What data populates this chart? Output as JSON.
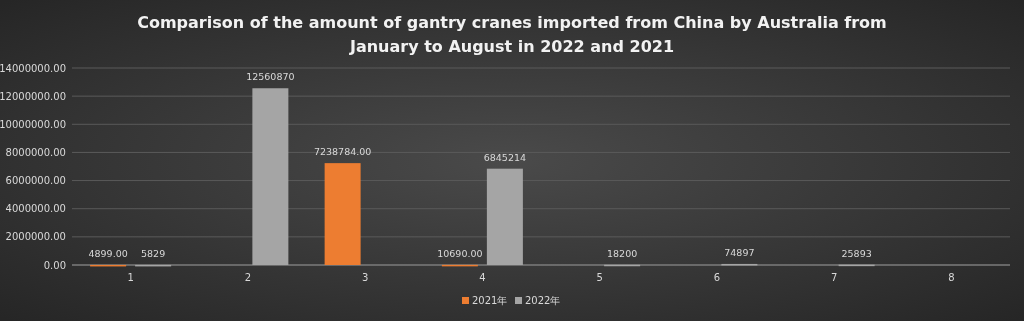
{
  "chart_data": {
    "type": "bar",
    "title": "Comparison of the amount of gantry cranes imported from China by Australia from January to August in 2022 and 2021",
    "categories": [
      "1",
      "2",
      "3",
      "4",
      "5",
      "6",
      "7",
      "8"
    ],
    "series": [
      {
        "name": "2021年",
        "color": "#ed7d31",
        "values": [
          4899,
          null,
          7238784,
          10690,
          null,
          null,
          null,
          null
        ],
        "value_labels": [
          "4899.00",
          null,
          "7238784.00",
          "10690.00",
          null,
          null,
          null,
          null
        ]
      },
      {
        "name": "2022年",
        "color": "#a5a5a5",
        "values": [
          5829,
          12560870,
          null,
          6845214,
          18200,
          74897,
          25893,
          null
        ],
        "value_labels": [
          "5829",
          "12560870",
          null,
          "6845214",
          "18200",
          "74897",
          "25893",
          null
        ]
      }
    ],
    "ylim": [
      0,
      14000000
    ],
    "yticks": [
      {
        "value": 0,
        "label": "0.00"
      },
      {
        "value": 2000000,
        "label": "2000000.00"
      },
      {
        "value": 4000000,
        "label": "4000000.00"
      },
      {
        "value": 6000000,
        "label": "6000000.00"
      },
      {
        "value": 8000000,
        "label": "8000000.00"
      },
      {
        "value": 10000000,
        "label": "10000000.00"
      },
      {
        "value": 12000000,
        "label": "12000000.00"
      },
      {
        "value": 14000000,
        "label": "14000000.00"
      }
    ],
    "grid": "y",
    "legend": "bottom"
  }
}
